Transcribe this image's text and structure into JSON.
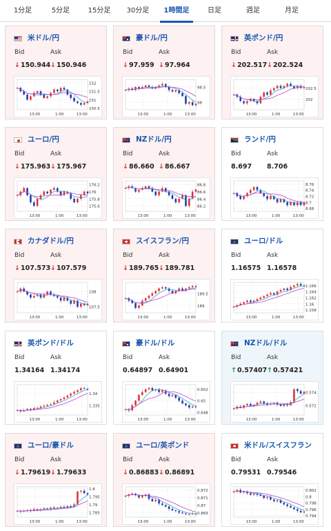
{
  "tabs": [
    {
      "label": "1分足",
      "active": false
    },
    {
      "label": "5分足",
      "active": false
    },
    {
      "label": "15分足",
      "active": false
    },
    {
      "label": "30分足",
      "active": false
    },
    {
      "label": "1時間足",
      "active": true
    },
    {
      "label": "日足",
      "active": false
    },
    {
      "label": "週足",
      "active": false
    },
    {
      "label": "月足",
      "active": false
    }
  ],
  "labels": {
    "bid": "Bid",
    "ask": "Ask"
  },
  "arrows": {
    "down": "↓",
    "up": "↑"
  },
  "cards": [
    {
      "pair": "米ドル/円",
      "flag": "us",
      "trend": "down",
      "bid": "150.944",
      "ask": "150.946",
      "chart_data": {
        "type": "line",
        "x_ticks": [
          "13:00",
          "1:00",
          "13:00"
        ],
        "y_ticks": [
          152,
          151.5,
          151,
          150.5
        ],
        "ylim": [
          150.4,
          152.2
        ],
        "values": [
          151.7,
          151.5,
          151.3,
          151.0,
          151.2,
          151.4,
          151.5,
          151.3,
          151.1,
          151.2,
          151.4,
          151.6,
          151.5,
          151.7,
          151.6,
          151.3,
          151.1,
          150.9,
          150.8,
          150.7,
          150.8,
          150.9
        ]
      }
    },
    {
      "pair": "豪ドル/円",
      "flag": "au",
      "trend": "down",
      "bid": "97.959",
      "ask": "97.964",
      "chart_data": {
        "type": "line",
        "x_ticks": [
          "13:00",
          "1:00",
          "13:00"
        ],
        "y_ticks": [
          98.5,
          98
        ],
        "ylim": [
          97.75,
          98.75
        ],
        "values": [
          98.4,
          98.45,
          98.4,
          98.5,
          98.45,
          98.5,
          98.55,
          98.5,
          98.45,
          98.5,
          98.55,
          98.6,
          98.5,
          98.4,
          98.35,
          98.4,
          98.3,
          98.2,
          97.95,
          98.0,
          97.9,
          97.95
        ]
      }
    },
    {
      "pair": "英ポンド/円",
      "flag": "uk",
      "trend": "down",
      "bid": "202.517",
      "ask": "202.524",
      "chart_data": {
        "type": "line",
        "x_ticks": [
          "13:00",
          "1:00",
          "13:00"
        ],
        "y_ticks": [
          202.5,
          202
        ],
        "ylim": [
          201.5,
          202.9
        ],
        "values": [
          202.2,
          202.1,
          201.9,
          201.8,
          201.9,
          202.0,
          201.9,
          201.8,
          202.1,
          202.3,
          202.2,
          202.4,
          202.5,
          202.6,
          202.5,
          202.6,
          202.7,
          202.6,
          202.5,
          202.6,
          202.5,
          202.55
        ]
      }
    },
    {
      "pair": "ユーロ/円",
      "flag": "jp",
      "trend": "down",
      "bid": "175.963",
      "ask": "175.967",
      "chart_data": {
        "type": "line",
        "x_ticks": [
          "13:00",
          "1:00",
          "13:00"
        ],
        "y_ticks": [
          176.2,
          176,
          175.8,
          175.6
        ],
        "ylim": [
          175.45,
          176.3
        ],
        "values": [
          175.9,
          176.0,
          176.1,
          175.9,
          175.7,
          175.6,
          175.8,
          175.9,
          176.0,
          175.95,
          176.05,
          176.1,
          176.0,
          175.9,
          176.0,
          175.95,
          175.8,
          175.7,
          175.8,
          175.9,
          176.0,
          175.95
        ]
      }
    },
    {
      "pair": "NZドル/円",
      "flag": "nz",
      "trend": "down",
      "bid": "86.660",
      "ask": "86.667",
      "chart_data": {
        "type": "line",
        "x_ticks": [
          "13:00",
          "1:00",
          "13:00"
        ],
        "y_ticks": [
          86.8,
          86.6,
          86.4,
          86.2
        ],
        "ylim": [
          86.05,
          86.9
        ],
        "values": [
          86.7,
          86.75,
          86.7,
          86.6,
          86.65,
          86.7,
          86.75,
          86.7,
          86.6,
          86.5,
          86.6,
          86.7,
          86.6,
          86.5,
          86.4,
          86.3,
          86.4,
          86.5,
          86.2,
          86.4,
          86.6,
          86.66
        ]
      }
    },
    {
      "pair": "ランド/円",
      "flag": "za",
      "trend": "flat",
      "bid": "8.697",
      "ask": "8.706",
      "chart_data": {
        "type": "line",
        "x_ticks": [
          "13:00",
          "1:00",
          "13:00"
        ],
        "y_ticks": [
          8.76,
          8.74,
          8.72,
          8.7,
          8.68
        ],
        "ylim": [
          8.67,
          8.77
        ],
        "values": [
          8.73,
          8.72,
          8.71,
          8.72,
          8.73,
          8.74,
          8.75,
          8.74,
          8.73,
          8.72,
          8.71,
          8.72,
          8.71,
          8.7,
          8.71,
          8.7,
          8.69,
          8.7,
          8.69,
          8.7,
          8.69,
          8.7
        ]
      }
    },
    {
      "pair": "カナダドル/円",
      "flag": "ca",
      "trend": "down",
      "bid": "107.573",
      "ask": "107.579",
      "chart_data": {
        "type": "line",
        "x_ticks": [
          "13:00",
          "1:00",
          "13:00"
        ],
        "y_ticks": [
          108,
          107.5
        ],
        "ylim": [
          107.3,
          108.3
        ],
        "values": [
          108.0,
          108.1,
          108.0,
          107.9,
          107.8,
          107.85,
          107.9,
          107.8,
          107.9,
          108.0,
          107.9,
          107.85,
          107.8,
          107.7,
          107.8,
          107.7,
          107.6,
          107.7,
          107.5,
          107.6,
          107.55,
          107.6
        ]
      }
    },
    {
      "pair": "スイスフラン/円",
      "flag": "ch",
      "trend": "down",
      "bid": "189.765",
      "ask": "189.781",
      "chart_data": {
        "type": "line",
        "x_ticks": [
          "13:00",
          "1:00",
          "13:00"
        ],
        "y_ticks": [
          189.5,
          189
        ],
        "ylim": [
          188.7,
          189.95
        ],
        "values": [
          189.3,
          189.2,
          189.1,
          188.9,
          189.0,
          189.2,
          189.3,
          189.4,
          189.5,
          189.6,
          189.7,
          189.75,
          189.7,
          189.6,
          189.5,
          189.6,
          189.7,
          189.6,
          189.7,
          189.75,
          189.8,
          189.77
        ]
      }
    },
    {
      "pair": "ユーロ/ドル",
      "flag": "eu",
      "trend": "flat",
      "bid": "1.16575",
      "ask": "1.16578",
      "chart_data": {
        "type": "line",
        "x_ticks": [
          "13:00",
          "1:00",
          "13:00"
        ],
        "y_ticks": [
          1.166,
          1.164,
          1.162,
          1.16,
          1.158
        ],
        "ylim": [
          1.157,
          1.167
        ],
        "values": [
          1.159,
          1.1595,
          1.16,
          1.1605,
          1.161,
          1.1605,
          1.161,
          1.1615,
          1.162,
          1.1625,
          1.163,
          1.1635,
          1.163,
          1.164,
          1.1645,
          1.165,
          1.1645,
          1.1655,
          1.166,
          1.1665,
          1.166,
          1.1658
        ]
      }
    },
    {
      "pair": "英ポンド/ドル",
      "flag": "uk",
      "trend": "flat",
      "bid": "1.34164",
      "ask": "1.34174",
      "chart_data": {
        "type": "line",
        "x_ticks": [
          "13:00",
          "1:00",
          "13:00"
        ],
        "y_ticks": [
          1.34,
          1.335
        ],
        "ylim": [
          1.331,
          1.3435
        ],
        "values": [
          1.333,
          1.3325,
          1.333,
          1.3335,
          1.3332,
          1.3338,
          1.334,
          1.3345,
          1.3348,
          1.3352,
          1.3355,
          1.3362,
          1.337,
          1.3375,
          1.3382,
          1.339,
          1.3398,
          1.3405,
          1.3412,
          1.342,
          1.3418,
          1.3416
        ]
      }
    },
    {
      "pair": "豪ドル/ドル",
      "flag": "au",
      "trend": "flat",
      "bid": "0.64897",
      "ask": "0.64901",
      "chart_data": {
        "type": "line",
        "x_ticks": [
          "13:00",
          "1:00",
          "13:00"
        ],
        "y_ticks": [
          0.652,
          0.65,
          0.648
        ],
        "ylim": [
          0.6475,
          0.6528
        ],
        "values": [
          0.6485,
          0.6483,
          0.6492,
          0.65,
          0.651,
          0.6515,
          0.652,
          0.6522,
          0.6518,
          0.652,
          0.6515,
          0.6518,
          0.6512,
          0.6508,
          0.651,
          0.6505,
          0.65,
          0.6495,
          0.6492,
          0.6488,
          0.649,
          0.6489
        ]
      }
    },
    {
      "pair": "NZドル/ドル",
      "flag": "nz",
      "trend": "up",
      "bid": "0.57407",
      "ask": "0.57421",
      "chart_data": {
        "type": "line",
        "x_ticks": [
          "13:00",
          "1:00",
          "13:00"
        ],
        "y_ticks": [
          0.574,
          0.572
        ],
        "ylim": [
          0.5705,
          0.5752
        ],
        "values": [
          0.5715,
          0.5718,
          0.5716,
          0.572,
          0.5722,
          0.5719,
          0.5721,
          0.5724,
          0.5726,
          0.5723,
          0.5721,
          0.5722,
          0.5724,
          0.5721,
          0.5719,
          0.5722,
          0.572,
          0.5725,
          0.5745,
          0.5742,
          0.5738,
          0.5741
        ]
      }
    },
    {
      "pair": "ユーロ/豪ドル",
      "flag": "eu",
      "trend": "down",
      "bid": "1.79619",
      "ask": "1.79633",
      "chart_data": {
        "type": "line",
        "x_ticks": [
          "13:00",
          "1:00",
          "13:00"
        ],
        "y_ticks": [
          1.8,
          1.795,
          1.79,
          1.785
        ],
        "ylim": [
          1.782,
          1.801
        ],
        "values": [
          1.786,
          1.7855,
          1.786,
          1.7865,
          1.786,
          1.787,
          1.7865,
          1.787,
          1.7875,
          1.787,
          1.788,
          1.7875,
          1.788,
          1.7885,
          1.788,
          1.789,
          1.7885,
          1.79,
          1.798,
          1.7985,
          1.797,
          1.7962
        ]
      }
    },
    {
      "pair": "ユーロ/英ポンド",
      "flag": "eu",
      "trend": "down",
      "bid": "0.86883",
      "ask": "0.86891",
      "chart_data": {
        "type": "line",
        "x_ticks": [
          "13:00",
          "1:00",
          "13:00"
        ],
        "y_ticks": [
          0.872,
          0.871,
          0.87,
          0.869
        ],
        "ylim": [
          0.8684,
          0.8724
        ],
        "values": [
          0.8712,
          0.8714,
          0.8715,
          0.8713,
          0.871,
          0.8712,
          0.8714,
          0.8708,
          0.8705,
          0.8707,
          0.8702,
          0.87,
          0.8698,
          0.8695,
          0.8693,
          0.8692,
          0.869,
          0.8689,
          0.8688,
          0.8688,
          0.8689,
          0.8688
        ]
      }
    },
    {
      "pair": "米ドル/スイスフラン",
      "flag": "ch",
      "trend": "flat",
      "bid": "0.79531",
      "ask": "0.79546",
      "chart_data": {
        "type": "line",
        "x_ticks": [
          "13:00",
          "1:00",
          "13:00"
        ],
        "y_ticks": [
          0.802,
          0.8,
          0.798,
          0.796,
          0.794
        ],
        "ylim": [
          0.7935,
          0.803
        ],
        "values": [
          0.8015,
          0.802,
          0.8012,
          0.8015,
          0.801,
          0.8005,
          0.8008,
          0.8005,
          0.8002,
          0.7995,
          0.7998,
          0.799,
          0.7985,
          0.7988,
          0.798,
          0.7975,
          0.797,
          0.7965,
          0.796,
          0.7955,
          0.795,
          0.7953
        ]
      }
    }
  ]
}
